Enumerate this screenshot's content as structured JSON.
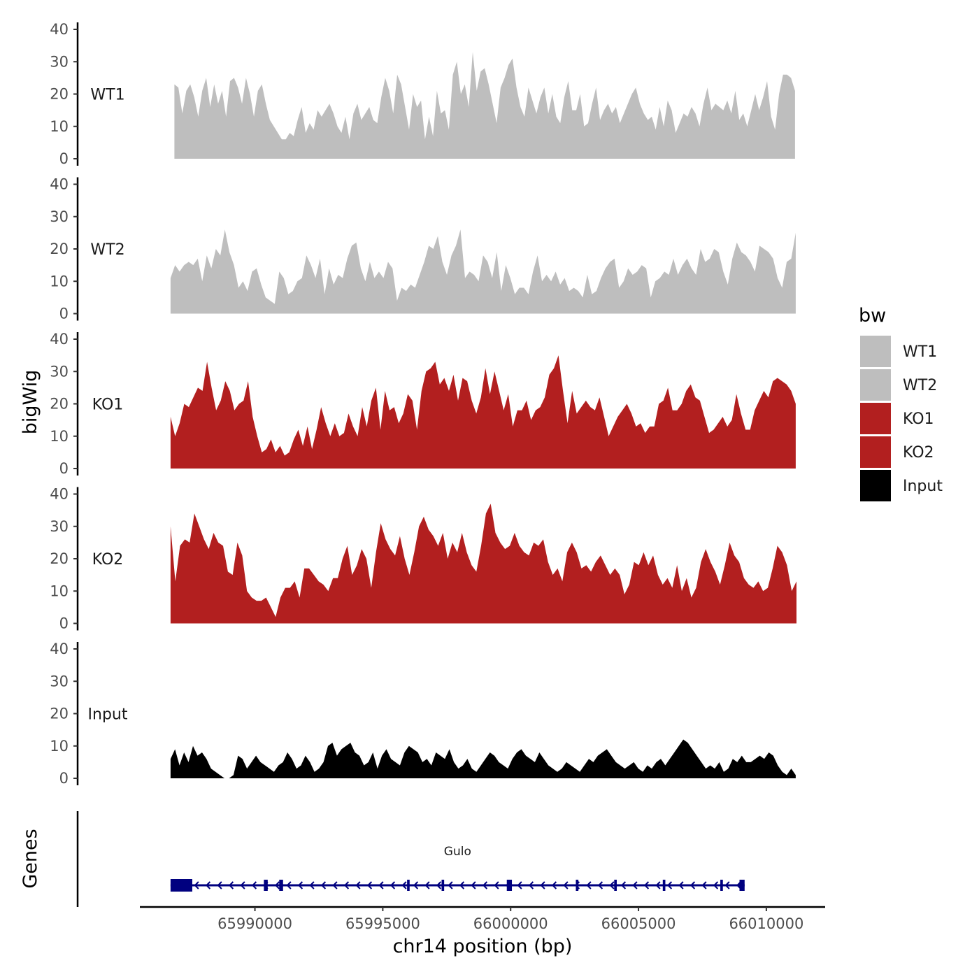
{
  "chart_data": {
    "type": "area",
    "chromosome": "chr14",
    "xlabel": "chr14 position (bp)",
    "ylabel": "bigWig",
    "genes_label": "Genes",
    "xlim": [
      65985500,
      66012300
    ],
    "x_ticks": [
      65990000,
      65995000,
      66000000,
      66005000,
      66010000
    ],
    "x_tick_labels": [
      "65990000",
      "65995000",
      "66000000",
      "66005000",
      "66010000"
    ],
    "ylim": [
      0,
      40
    ],
    "y_ticks": [
      0,
      10,
      20,
      30,
      40
    ],
    "y_tick_labels": [
      "0",
      "10",
      "20",
      "30",
      "40"
    ],
    "grid": false,
    "legend": {
      "title": "bw",
      "position": "right",
      "entries": [
        {
          "label": "WT1",
          "color": "#bebebe"
        },
        {
          "label": "WT2",
          "color": "#bebebe"
        },
        {
          "label": "KO1",
          "color": "#b21f1f"
        },
        {
          "label": "KO2",
          "color": "#b21f1f"
        },
        {
          "label": "Input",
          "color": "#000000"
        }
      ]
    },
    "series": [
      {
        "name": "WT1",
        "color": "#bebebe",
        "x_start": 65986850,
        "x_end": 66011120,
        "values": [
          23,
          22,
          14,
          21,
          23,
          19,
          13,
          21,
          25,
          16,
          23,
          17,
          21,
          13,
          24,
          25,
          22,
          17,
          25,
          20,
          13,
          21,
          23,
          17,
          12,
          10,
          8,
          6,
          6,
          8,
          7,
          12,
          16,
          8,
          11,
          9,
          15,
          13,
          15,
          17,
          14,
          10,
          8,
          13,
          6,
          14,
          17,
          12,
          14,
          16,
          12,
          11,
          19,
          25,
          21,
          14,
          26,
          23,
          16,
          9,
          20,
          16,
          18,
          6,
          13,
          7,
          21,
          14,
          15,
          9,
          26,
          30,
          20,
          23,
          16,
          33,
          21,
          27,
          28,
          23,
          17,
          11,
          22,
          25,
          29,
          31,
          22,
          16,
          13,
          22,
          18,
          14,
          19,
          22,
          14,
          20,
          13,
          11,
          19,
          24,
          15,
          15,
          20,
          10,
          11,
          17,
          22,
          12,
          15,
          17,
          14,
          16,
          11,
          14,
          17,
          20,
          22,
          17,
          14,
          12,
          13,
          9,
          16,
          10,
          18,
          15,
          8,
          11,
          14,
          13,
          16,
          14,
          10,
          17,
          22,
          15,
          17,
          16,
          15,
          18,
          14,
          21,
          12,
          14,
          10,
          15,
          20,
          15,
          19,
          24,
          13,
          9,
          20,
          26,
          26,
          25,
          21
        ]
      },
      {
        "name": "WT2",
        "color": "#bebebe",
        "x_start": 65986700,
        "x_end": 66011150,
        "values": [
          11,
          15,
          13,
          15,
          16,
          15,
          17,
          10,
          18,
          14,
          20,
          18,
          26,
          19,
          15,
          8,
          10,
          7,
          13,
          14,
          9,
          5,
          4,
          3,
          13,
          11,
          6,
          7,
          10,
          11,
          18,
          15,
          11,
          17,
          6,
          14,
          9,
          12,
          11,
          17,
          21,
          22,
          14,
          10,
          16,
          11,
          13,
          11,
          16,
          14,
          4,
          8,
          7,
          9,
          8,
          12,
          16,
          21,
          20,
          24,
          16,
          12,
          18,
          21,
          26,
          11,
          13,
          12,
          10,
          18,
          16,
          11,
          19,
          7,
          15,
          11,
          6,
          8,
          8,
          6,
          13,
          18,
          10,
          12,
          10,
          13,
          9,
          11,
          7,
          8,
          7,
          5,
          12,
          6,
          7,
          11,
          14,
          16,
          17,
          8,
          10,
          14,
          12,
          13,
          15,
          14,
          5,
          10,
          11,
          13,
          12,
          17,
          12,
          15,
          17,
          14,
          12,
          20,
          16,
          17,
          20,
          19,
          13,
          9,
          17,
          22,
          19,
          18,
          16,
          13,
          21,
          20,
          19,
          17,
          11,
          8,
          16,
          17,
          25
        ]
      },
      {
        "name": "KO1",
        "color": "#b21f1f",
        "x_start": 65986700,
        "x_end": 66011150,
        "values": [
          16,
          10,
          14,
          20,
          19,
          22,
          25,
          24,
          33,
          25,
          18,
          21,
          27,
          24,
          18,
          20,
          21,
          27,
          16,
          10,
          5,
          6,
          9,
          5,
          7,
          4,
          5,
          9,
          12,
          7,
          13,
          6,
          12,
          19,
          14,
          10,
          14,
          10,
          11,
          17,
          13,
          10,
          19,
          13,
          21,
          25,
          12,
          24,
          18,
          19,
          14,
          17,
          23,
          21,
          12,
          24,
          30,
          31,
          33,
          26,
          28,
          24,
          29,
          21,
          28,
          27,
          21,
          17,
          22,
          31,
          23,
          30,
          24,
          18,
          23,
          13,
          18,
          18,
          21,
          15,
          18,
          19,
          22,
          29,
          31,
          35,
          24,
          14,
          24,
          17,
          19,
          21,
          19,
          18,
          22,
          16,
          10,
          13,
          16,
          18,
          20,
          17,
          13,
          14,
          11,
          13,
          13,
          20,
          21,
          25,
          18,
          18,
          20,
          24,
          26,
          22,
          21,
          16,
          11,
          12,
          14,
          16,
          13,
          15,
          23,
          17,
          12,
          12,
          18,
          21,
          24,
          22,
          27,
          28,
          27,
          26,
          24,
          20
        ]
      },
      {
        "name": "KO2",
        "color": "#b21f1f",
        "x_start": 65986700,
        "x_end": 66011180,
        "values": [
          30,
          13,
          24,
          26,
          25,
          34,
          30,
          26,
          23,
          28,
          25,
          24,
          16,
          15,
          25,
          21,
          10,
          8,
          7,
          7,
          8,
          5,
          2,
          8,
          11,
          11,
          13,
          8,
          17,
          17,
          15,
          13,
          12,
          10,
          14,
          14,
          20,
          24,
          15,
          18,
          23,
          20,
          11,
          22,
          31,
          26,
          23,
          21,
          27,
          20,
          15,
          22,
          30,
          33,
          29,
          27,
          24,
          28,
          20,
          25,
          22,
          28,
          22,
          18,
          16,
          24,
          34,
          37,
          28,
          25,
          23,
          24,
          28,
          24,
          22,
          21,
          25,
          24,
          26,
          19,
          15,
          17,
          13,
          22,
          25,
          22,
          17,
          18,
          16,
          19,
          21,
          18,
          15,
          17,
          15,
          9,
          12,
          19,
          18,
          22,
          18,
          21,
          15,
          12,
          14,
          11,
          18,
          10,
          14,
          8,
          11,
          19,
          23,
          19,
          16,
          12,
          18,
          25,
          21,
          19,
          14,
          12,
          11,
          13,
          10,
          11,
          17,
          24,
          22,
          18,
          10,
          13
        ]
      },
      {
        "name": "Input",
        "color": "#000000",
        "x_start": 65986700,
        "x_end": 66011150,
        "values": [
          6,
          9,
          4,
          8,
          5,
          10,
          7,
          8,
          6,
          3,
          2,
          1,
          0,
          0,
          1,
          7,
          6,
          3,
          5,
          7,
          5,
          4,
          3,
          2,
          4,
          5,
          8,
          6,
          3,
          4,
          7,
          5,
          2,
          3,
          5,
          10,
          11,
          7,
          9,
          10,
          11,
          8,
          7,
          4,
          5,
          8,
          3,
          7,
          9,
          6,
          5,
          4,
          8,
          10,
          9,
          8,
          5,
          6,
          4,
          8,
          7,
          6,
          9,
          5,
          3,
          4,
          6,
          3,
          2,
          4,
          6,
          8,
          7,
          5,
          4,
          3,
          6,
          8,
          9,
          7,
          6,
          5,
          8,
          6,
          4,
          3,
          2,
          3,
          5,
          4,
          3,
          2,
          4,
          6,
          5,
          7,
          8,
          9,
          7,
          5,
          4,
          3,
          4,
          5,
          3,
          2,
          4,
          3,
          5,
          6,
          4,
          6,
          8,
          10,
          12,
          11,
          9,
          7,
          5,
          3,
          4,
          3,
          5,
          2,
          3,
          6,
          5,
          7,
          5,
          5,
          6,
          7,
          6,
          8,
          7,
          4,
          2,
          1,
          3,
          1
        ]
      }
    ],
    "gene_track": {
      "gene_name": "Gulo",
      "strand": "-",
      "start": 65986700,
      "end": 66009150,
      "exons": [
        [
          65986700,
          65987550
        ],
        [
          65990350,
          65990500
        ],
        [
          65990950,
          65991100
        ],
        [
          65995950,
          65996050
        ],
        [
          65997300,
          65997400
        ],
        [
          65999850,
          66000050
        ],
        [
          66002550,
          66002650
        ],
        [
          66004050,
          66004150
        ],
        [
          66005950,
          66006050
        ],
        [
          66008200,
          66008300
        ],
        [
          66008950,
          66009150
        ]
      ]
    }
  }
}
